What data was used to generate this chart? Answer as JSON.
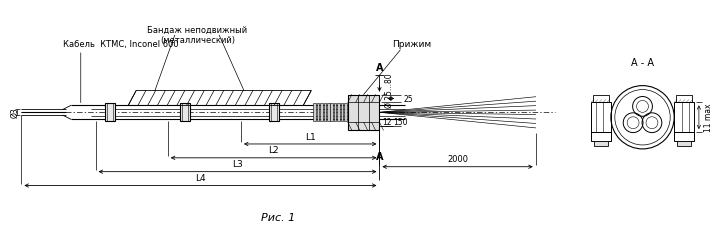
{
  "title": "Рис. 1",
  "label_cable": "Кабель  КТМС, Inconel 600",
  "label_bandage": "Бандаж неподвижный\n(металлический)",
  "label_clamp": "Прижим",
  "label_section": "А - А",
  "label_A_top": "А",
  "label_A_bot": "А",
  "label_d3": "Ø3",
  "label_d25_80": "Ø 25...80",
  "label_L1": "L1",
  "label_L2": "L2",
  "label_L3": "L3",
  "label_L4": "L4",
  "label_2000": "2000",
  "label_150": "150",
  "label_25": "25",
  "label_12": "12",
  "label_11max": "11 max",
  "bg_color": "#ffffff",
  "line_color": "#000000",
  "fig_width": 7.0,
  "fig_height": 2.24
}
